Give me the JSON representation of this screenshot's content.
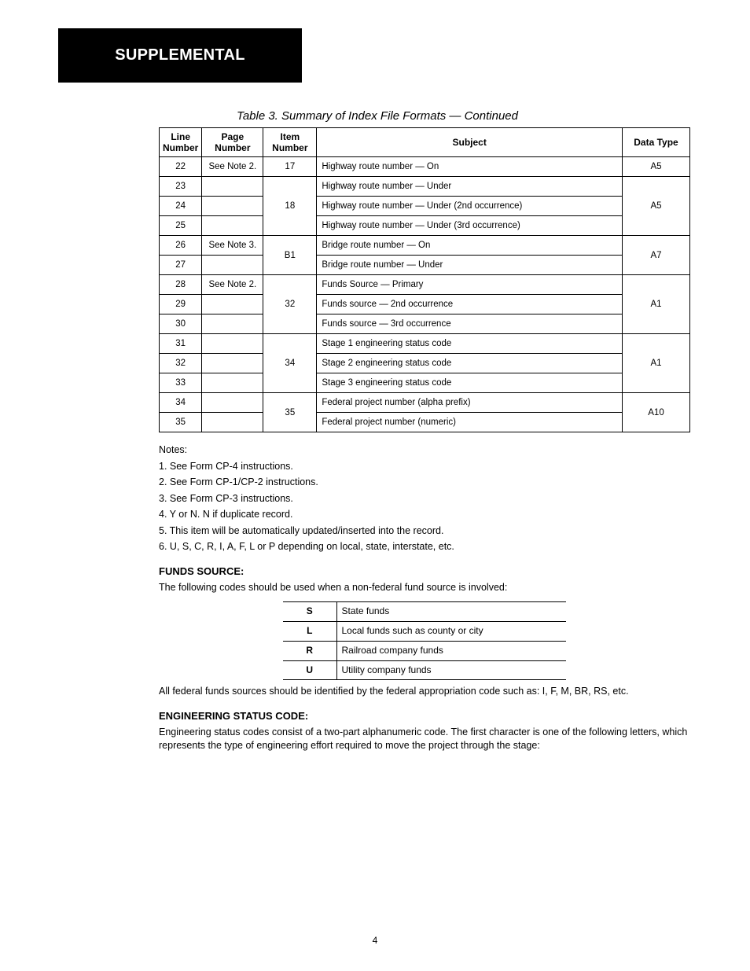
{
  "header_box_label": "SUPPLEMENTAL",
  "table_title": "Table 3.   Summary of Index File Formats — Continued",
  "main_table": {
    "columns": [
      "Line Number",
      "Page Number",
      "Item Number",
      "Subject",
      "Data Type"
    ],
    "col_classes": [
      "c-ln",
      "c-pg",
      "c-it",
      "c-su",
      "c-dt"
    ],
    "rows": [
      {
        "ln": "22",
        "pg": "See Note 2.",
        "it_span": 1,
        "it": "17",
        "su": "Highway route number — On",
        "dt": "A5"
      },
      {
        "ln": "23",
        "pg": "",
        "it_span": 3,
        "it": "18",
        "su": "Highway route number — Under",
        "dt_span": 3,
        "dt": "A5"
      },
      {
        "ln": "24",
        "pg": "",
        "it_span": 0,
        "it": "",
        "su": "Highway route number — Under (2nd occurrence)",
        "dt_span": 0,
        "dt": ""
      },
      {
        "ln": "25",
        "pg": "",
        "it_span": 0,
        "it": "",
        "su": "Highway route number — Under (3rd occurrence)",
        "dt_span": 0,
        "dt": ""
      },
      {
        "ln": "26",
        "pg": "See Note 3.",
        "it_span": 2,
        "it": "B1",
        "su": "Bridge route number — On",
        "dt_span": 2,
        "dt": "A7"
      },
      {
        "ln": "27",
        "pg": "",
        "it_span": 0,
        "it": "",
        "su": "Bridge route number — Under",
        "dt_span": 0,
        "dt": ""
      },
      {
        "ln": "28",
        "pg": "See Note 2.",
        "it_span": 3,
        "it": "32",
        "su": "Funds Source — Primary",
        "dt_span": 3,
        "dt": "A1"
      },
      {
        "ln": "29",
        "pg": "",
        "it_span": 0,
        "it": "",
        "su": "Funds source — 2nd occurrence",
        "dt_span": 0,
        "dt": ""
      },
      {
        "ln": "30",
        "pg": "",
        "it_span": 0,
        "it": "",
        "su": "Funds source — 3rd occurrence",
        "dt_span": 0,
        "dt": ""
      },
      {
        "ln": "31",
        "pg": "",
        "it_span": 3,
        "it": "34",
        "su": "Stage 1 engineering status code",
        "dt_span": 3,
        "dt": "A1"
      },
      {
        "ln": "32",
        "pg": "",
        "it_span": 0,
        "it": "",
        "su": "Stage 2 engineering status code",
        "dt_span": 0,
        "dt": ""
      },
      {
        "ln": "33",
        "pg": "",
        "it_span": 0,
        "it": "",
        "su": "Stage 3 engineering status code",
        "dt_span": 0,
        "dt": ""
      },
      {
        "ln": "34",
        "pg": "",
        "it_span": 2,
        "it": "35",
        "su": "Federal project number (alpha prefix)",
        "dt_span": 2,
        "dt": "A10"
      },
      {
        "ln": "35",
        "pg": "",
        "it_span": 0,
        "it": "",
        "su": "Federal project number (numeric)",
        "dt_span": 0,
        "dt": ""
      }
    ]
  },
  "notes": [
    "Notes:",
    "1. See Form CP-4 instructions.",
    "2. See Form CP-1/CP-2 instructions.",
    "3. See Form CP-3 instructions.",
    "4. Y or N. N if duplicate record.",
    "5. This item will be automatically updated/inserted into the record.",
    "6. U, S, C, R, I, A, F, L or P depending on local, state, interstate, etc."
  ],
  "funds": {
    "title": "FUNDS SOURCE:",
    "intro": "The following codes should be used when a non-federal fund source is involved:",
    "rows": [
      {
        "code": "S",
        "desc": "State funds"
      },
      {
        "code": "L",
        "desc": "Local funds such as county or city"
      },
      {
        "code": "R",
        "desc": "Railroad company funds"
      },
      {
        "code": "U",
        "desc": "Utility company funds"
      }
    ],
    "note_after": "All federal funds sources should be identified by the federal appropriation code such as: I, F, M, BR, RS, etc."
  },
  "eng_status": {
    "title": "ENGINEERING STATUS CODE:",
    "text": "Engineering status codes consist of a two-part alphanumeric code. The first character is one of the following letters, which represents the type of engineering effort required to move the project through the stage:"
  },
  "page_number": "4"
}
